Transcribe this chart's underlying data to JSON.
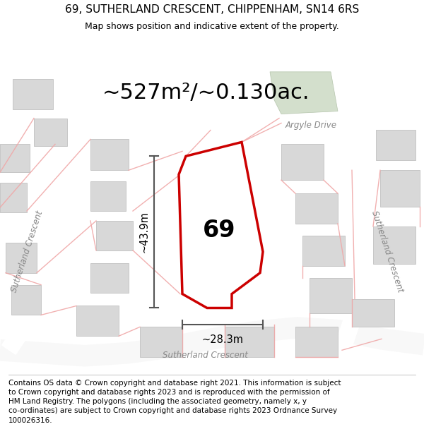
{
  "title_line1": "69, SUTHERLAND CRESCENT, CHIPPENHAM, SN14 6RS",
  "title_line2": "Map shows position and indicative extent of the property.",
  "area_text": "~527m²/~0.130ac.",
  "dim_height": "~43.9m",
  "dim_width": "~28.3m",
  "property_number": "69",
  "footer_wrapped": "Contains OS data © Crown copyright and database right 2021. This information is subject\nto Crown copyright and database rights 2023 and is reproduced with the permission of\nHM Land Registry. The polygons (including the associated geometry, namely x, y\nco-ordinates) are subject to Crown copyright and database rights 2023 Ordnance Survey\n100026316.",
  "map_bg": "#f5f5f0",
  "property_fill": "#ffffff",
  "property_edge": "#cc0000",
  "building_color": "#d8d8d8",
  "building_edge": "#c0c0c0",
  "green_fill": "#c8d8c0",
  "green_edge": "#aabba0",
  "title_fontsize": 11,
  "subtitle_fontsize": 9,
  "area_fontsize": 22,
  "footer_fontsize": 7.5,
  "label_color": "#888888",
  "dim_color": "#555555"
}
